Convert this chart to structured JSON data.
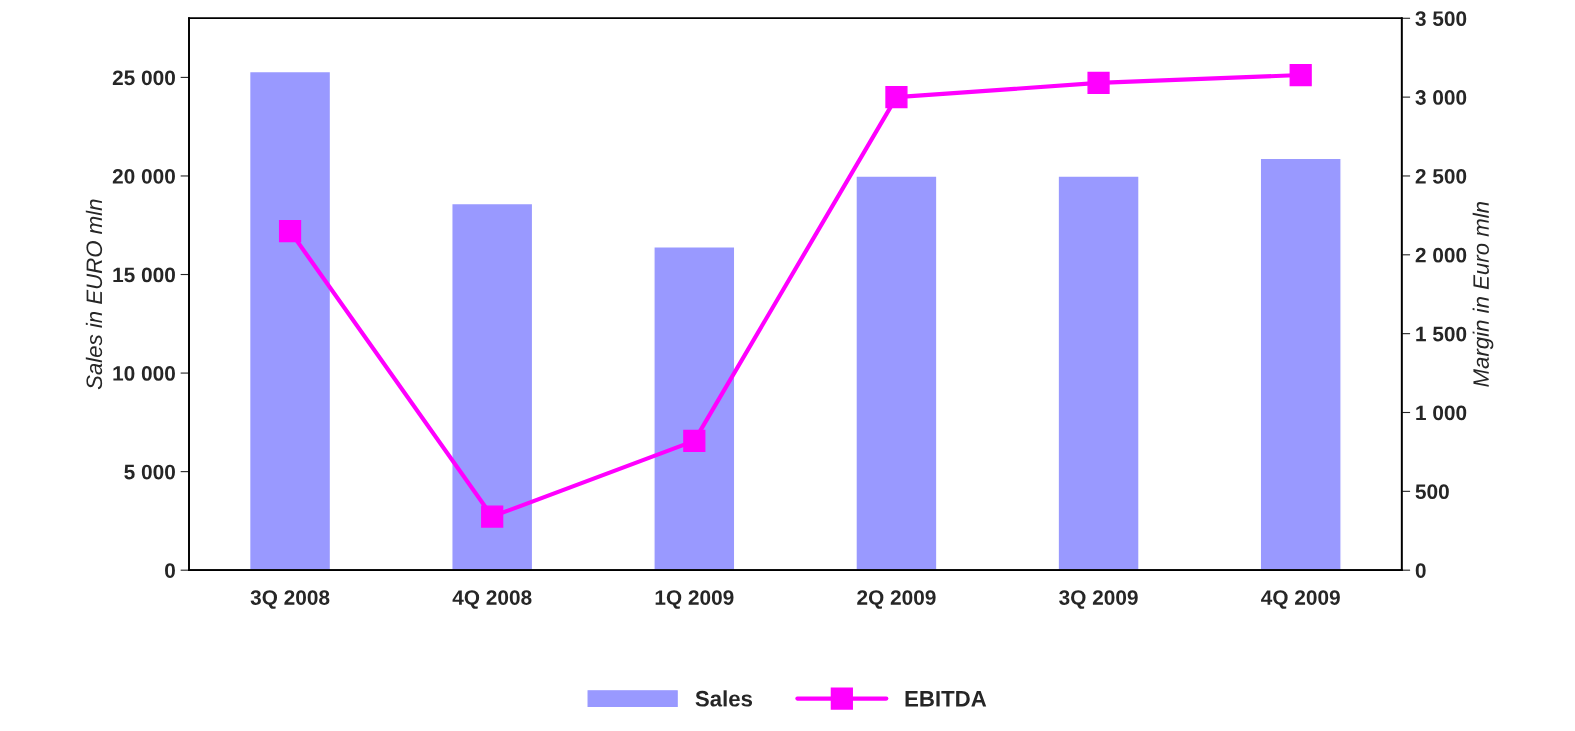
{
  "chart_data": {
    "type": "bar",
    "categories": [
      "3Q 2008",
      "4Q 2008",
      "1Q 2009",
      "2Q 2009",
      "3Q 2009",
      "4Q 2009"
    ],
    "series": [
      {
        "name": "Sales",
        "color": "#9999ff",
        "values": [
          25300,
          18600,
          16400,
          20000,
          20000,
          20900
        ]
      },
      {
        "name": "EBITDA",
        "type": "line",
        "axis": "y2",
        "color": "#ff00ff",
        "marker": "square",
        "values": [
          2150,
          340,
          820,
          3000,
          3090,
          3140
        ]
      }
    ],
    "ylabel": "Sales in EURO mln",
    "y2label": "Margin in Euro mln",
    "ylim": [
      0,
      28000
    ],
    "yticks": [
      0,
      {
        "value": 5000,
        "label": "5 000"
      },
      {
        "value": 10000,
        "label": "10 000"
      },
      {
        "value": 15000,
        "label": "15 000"
      },
      {
        "value": 20000,
        "label": "20 000"
      },
      {
        "value": 25000,
        "label": "25 000"
      }
    ],
    "y2lim": [
      0,
      3500
    ],
    "y2ticks": [
      0,
      500,
      {
        "value": 1000,
        "label": "1 000"
      },
      {
        "value": 1500,
        "label": "1 500"
      },
      {
        "value": 2000,
        "label": "2 000"
      },
      {
        "value": 2500,
        "label": "2 500"
      },
      {
        "value": 3000,
        "label": "3 000"
      },
      {
        "value": 3500,
        "label": "3 500"
      }
    ],
    "legend": "bottom",
    "grid": false
  }
}
